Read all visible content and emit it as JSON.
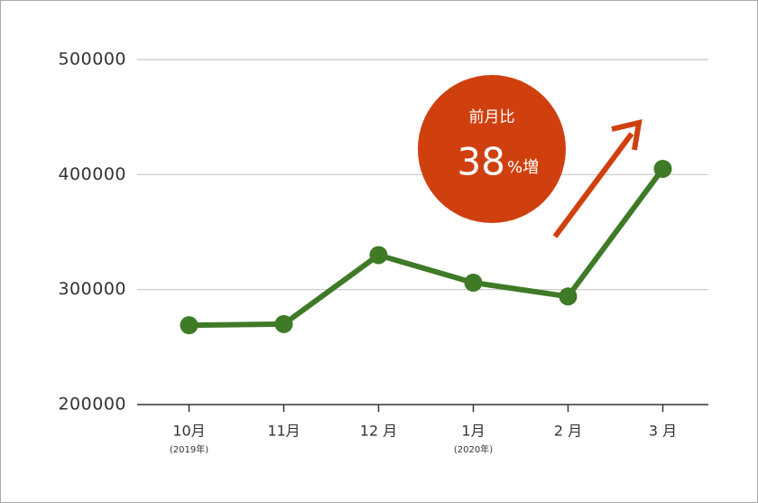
{
  "chart_data": {
    "type": "line",
    "categories": [
      "10月",
      "11月",
      "12 月",
      "1月",
      "2 月",
      "3 月"
    ],
    "category_sublabels": [
      "(2019年)",
      null,
      null,
      "(2020年)",
      null,
      null
    ],
    "values": [
      269000,
      270000,
      330000,
      306000,
      294000,
      405000
    ],
    "color": "#3f7a26",
    "ylim": [
      200000,
      500000
    ],
    "yticks": [
      200000,
      300000,
      400000,
      500000
    ],
    "grid": true,
    "annotation": {
      "label": "前月比",
      "value": 38,
      "unit": "%増",
      "color": "#d0400f"
    }
  }
}
